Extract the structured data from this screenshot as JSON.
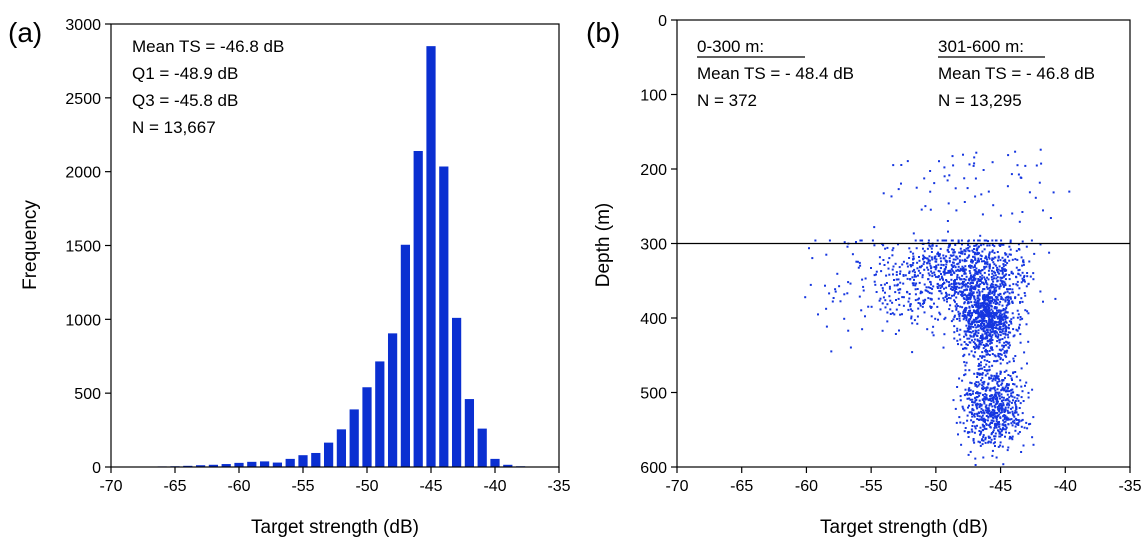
{
  "colors": {
    "bar": "#0A2FD1",
    "point": "#1536E0",
    "axis": "#000000"
  },
  "chart_data": [
    {
      "type": "bar",
      "panel_label": "(a)",
      "xlabel": "Target strength (dB)",
      "ylabel": "Frequency",
      "xlim": [
        -70,
        -35
      ],
      "ylim": [
        0,
        3000
      ],
      "xticks": [
        -70,
        -65,
        -60,
        -55,
        -50,
        -45,
        -40,
        -35
      ],
      "yticks": [
        0,
        500,
        1000,
        1500,
        2000,
        2500,
        3000
      ],
      "bin_width": 1,
      "x": [
        -68,
        -67,
        -66,
        -65,
        -64,
        -63,
        -62,
        -61,
        -60,
        -59,
        -58,
        -57,
        -56,
        -55,
        -54,
        -53,
        -52,
        -51,
        -50,
        -49,
        -48,
        -47,
        -46,
        -45,
        -44,
        -43,
        -42,
        -41,
        -40,
        -39,
        -38
      ],
      "values": [
        2,
        3,
        4,
        5,
        8,
        12,
        15,
        20,
        28,
        35,
        38,
        30,
        55,
        80,
        95,
        165,
        255,
        390,
        540,
        715,
        905,
        1505,
        2140,
        2850,
        2035,
        1010,
        460,
        260,
        55,
        15,
        5
      ],
      "annotations": [
        "Mean TS = -46.8 dB",
        "Q1 = -48.9 dB",
        "Q3 = -45.8 dB",
        "N = 13,667"
      ],
      "grid": false
    },
    {
      "type": "scatter",
      "panel_label": "(b)",
      "xlabel": "Target strength (dB)",
      "ylabel": "Depth (m)",
      "xlim": [
        -70,
        -35
      ],
      "ylim": [
        600,
        0
      ],
      "xticks": [
        -70,
        -65,
        -60,
        -55,
        -50,
        -45,
        -40,
        -35
      ],
      "yticks": [
        0,
        100,
        200,
        300,
        400,
        500,
        600
      ],
      "reference_line_y": 300,
      "annotations": {
        "left": {
          "header": "0-300 m:",
          "lines": [
            "Mean TS = ‐ 48.4 dB",
            "N = 372"
          ]
        },
        "right": {
          "header": "301-600 m:",
          "lines": [
            "Mean TS = ‐ 46.8 dB",
            "N = 13,295"
          ]
        }
      },
      "density_regions": [
        {
          "mean": [
            -46,
            400
          ],
          "sd": [
            1.6,
            40
          ]
        },
        {
          "mean": [
            -47.5,
            340
          ],
          "sd": [
            3.5,
            35
          ]
        },
        {
          "mean": [
            -45.5,
            520
          ],
          "sd": [
            1.7,
            40
          ]
        },
        {
          "mean": [
            -52,
            360
          ],
          "sd": [
            5,
            50
          ]
        },
        {
          "mean": [
            -47,
            230
          ],
          "sd": [
            5,
            40
          ]
        }
      ],
      "grid": false
    }
  ]
}
